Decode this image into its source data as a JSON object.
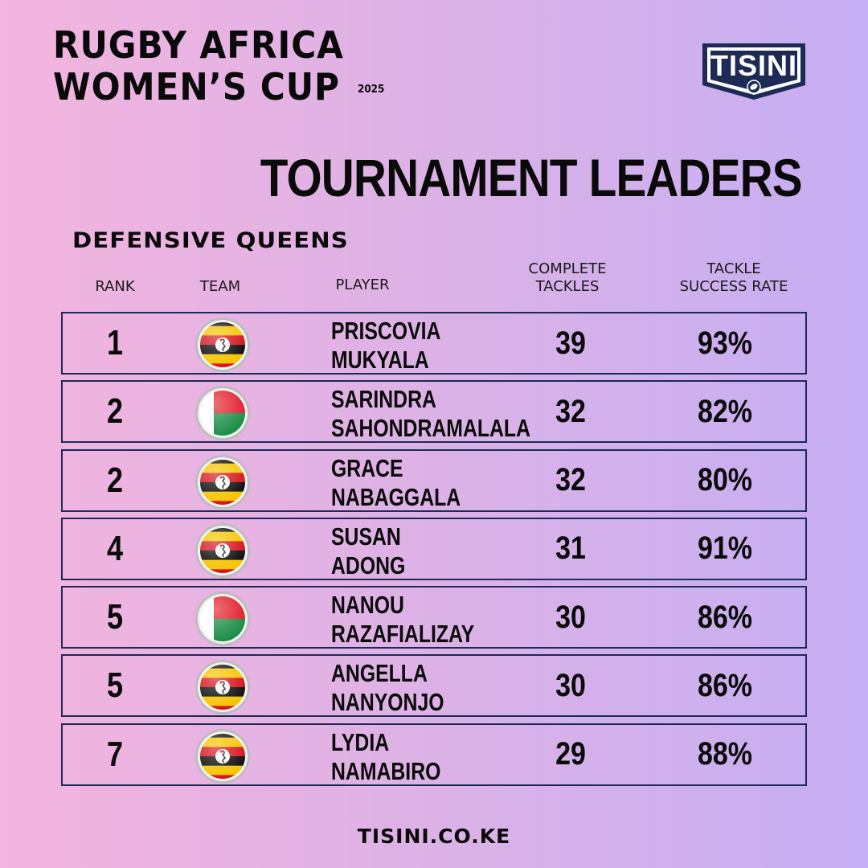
{
  "title": {
    "line1": "RUGBY AFRICA",
    "line2": "WOMEN’S CUP",
    "year": "2025"
  },
  "logo": {
    "text": "TISINI",
    "icon": "rugby-ball-icon"
  },
  "heading": "TOURNAMENT LEADERS",
  "subheading": "DEFENSIVE QUEENS",
  "columns": {
    "rank": "RANK",
    "team": "TEAM",
    "player": "PLAYER",
    "tackles_1": "COMPLETE",
    "tackles_2": "TACKLES",
    "rate_1": "TACKLE",
    "rate_2": "SUCCESS RATE"
  },
  "rows": [
    {
      "rank": "1",
      "team": "uganda",
      "first": "PRISCOVIA",
      "last": "MUKYALA",
      "tackles": "39",
      "rate": "93%"
    },
    {
      "rank": "2",
      "team": "madagascar",
      "first": "SARINDRA",
      "last": "SAHONDRAMALALA",
      "tackles": "32",
      "rate": "82%"
    },
    {
      "rank": "2",
      "team": "uganda",
      "first": "GRACE",
      "last": "NABAGGALA",
      "tackles": "32",
      "rate": "80%"
    },
    {
      "rank": "4",
      "team": "uganda",
      "first": "SUSAN",
      "last": "ADONG",
      "tackles": "31",
      "rate": "91%"
    },
    {
      "rank": "5",
      "team": "madagascar",
      "first": "NANOU",
      "last": "RAZAFIALIZAY",
      "tackles": "30",
      "rate": "86%"
    },
    {
      "rank": "5",
      "team": "uganda",
      "first": "ANGELLA",
      "last": "NANYONJO",
      "tackles": "30",
      "rate": "86%"
    },
    {
      "rank": "7",
      "team": "uganda",
      "first": "LYDIA",
      "last": "NAMABIRO",
      "tackles": "29",
      "rate": "88%"
    }
  ],
  "colors": {
    "border": "#1d2a55",
    "uganda_black": "#111111",
    "uganda_yellow": "#f6c500",
    "uganda_red": "#d5141e",
    "madagascar_red": "#e2202c",
    "madagascar_green": "#1f8f4a"
  },
  "footer": "TISINI.CO.KE"
}
